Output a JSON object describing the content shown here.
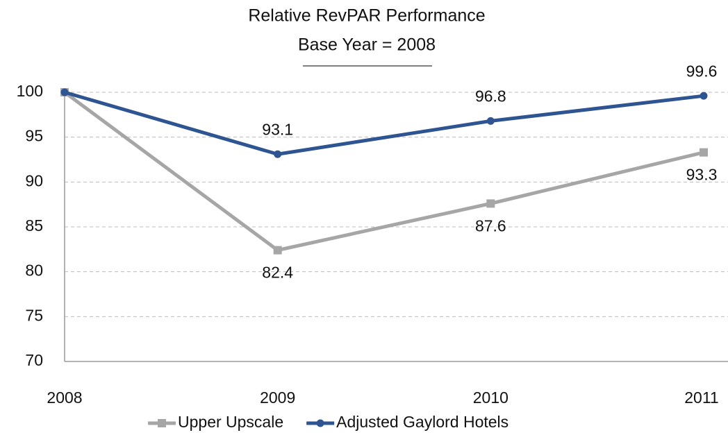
{
  "chart_data": {
    "type": "line",
    "title": "Relative RevPAR Performance",
    "subtitle": "Base Year = 2008",
    "categories": [
      "2008",
      "2009",
      "2010",
      "2011"
    ],
    "series": [
      {
        "name": "Upper Upscale",
        "color": "#a6a6a6",
        "marker": "square",
        "label_position": "below",
        "values": [
          100,
          82.4,
          87.6,
          93.3
        ],
        "value_labels": [
          null,
          "82.4",
          "87.6",
          "93.3"
        ]
      },
      {
        "name": "Adjusted Gaylord Hotels",
        "color": "#2e5591",
        "marker": "circle",
        "label_position": "above",
        "values": [
          100,
          93.1,
          96.8,
          99.6
        ],
        "value_labels": [
          null,
          "93.1",
          "96.8",
          "99.6"
        ]
      }
    ],
    "ylim": [
      70,
      100
    ],
    "yticks": [
      70,
      75,
      80,
      85,
      90,
      95,
      100
    ],
    "grid": true,
    "legend": "bottom"
  }
}
